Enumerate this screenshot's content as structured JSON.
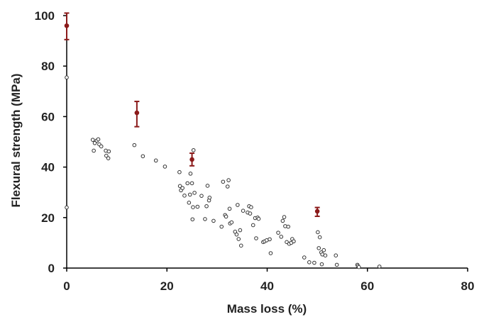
{
  "chart_data": {
    "type": "scatter",
    "title": "",
    "xlabel": "Mass loss (%)",
    "ylabel": "Flexural strength (MPa)",
    "xlim": [
      0,
      80
    ],
    "ylim": [
      0,
      100
    ],
    "x_ticks": [
      0,
      20,
      40,
      60,
      80
    ],
    "y_ticks": [
      0,
      20,
      40,
      60,
      80,
      100
    ],
    "grid": false,
    "legend": "none",
    "colors": {
      "points": "#333333",
      "error_bars": "#8b1a1a",
      "axes": "#000000"
    },
    "series": [
      {
        "marker": "open-circle",
        "points": [
          [
            0,
            75.5
          ],
          [
            0,
            24
          ],
          [
            5.2,
            50.8
          ],
          [
            5.4,
            46.5
          ],
          [
            5.6,
            49.5
          ],
          [
            6.0,
            50.5
          ],
          [
            6.3,
            51
          ],
          [
            6.5,
            49
          ],
          [
            6.9,
            48.2
          ],
          [
            7.8,
            46.5
          ],
          [
            7.9,
            44.5
          ],
          [
            8.3,
            43.5
          ],
          [
            8.4,
            46.2
          ],
          [
            13.5,
            48.7
          ],
          [
            15.2,
            44.3
          ],
          [
            17.8,
            42.6
          ],
          [
            19.6,
            40.2
          ],
          [
            22.5,
            38
          ],
          [
            22.6,
            32.5
          ],
          [
            22.8,
            30.8
          ],
          [
            23.1,
            31.7
          ],
          [
            23.5,
            28.7
          ],
          [
            24.1,
            33.6
          ],
          [
            24.4,
            25.9
          ],
          [
            24.6,
            29.1
          ],
          [
            24.7,
            37.4
          ],
          [
            25.0,
            33.6
          ],
          [
            25.1,
            19.3
          ],
          [
            25.2,
            24.1
          ],
          [
            25.3,
            46.7
          ],
          [
            25.5,
            29.8
          ],
          [
            26.1,
            24.3
          ],
          [
            26.9,
            28.6
          ],
          [
            27.6,
            19.4
          ],
          [
            27.9,
            24.5
          ],
          [
            28.1,
            32.6
          ],
          [
            28.4,
            26.8
          ],
          [
            28.5,
            27.9
          ],
          [
            29.3,
            18.7
          ],
          [
            30.9,
            16.4
          ],
          [
            31.2,
            34.2
          ],
          [
            31.6,
            21
          ],
          [
            31.8,
            20.4
          ],
          [
            32.1,
            32.3
          ],
          [
            32.3,
            34.8
          ],
          [
            32.5,
            23.5
          ],
          [
            32.6,
            17.7
          ],
          [
            32.9,
            18.1
          ],
          [
            33.6,
            14.4
          ],
          [
            33.9,
            13.3
          ],
          [
            34.1,
            25
          ],
          [
            34.3,
            11.5
          ],
          [
            34.6,
            15
          ],
          [
            34.8,
            8.9
          ],
          [
            35.2,
            22.7
          ],
          [
            36.1,
            22
          ],
          [
            36.4,
            24.5
          ],
          [
            36.6,
            21.6
          ],
          [
            36.8,
            24.1
          ],
          [
            37.2,
            17
          ],
          [
            37.6,
            19.8
          ],
          [
            37.8,
            11.8
          ],
          [
            38.1,
            20
          ],
          [
            38.3,
            19.5
          ],
          [
            39.2,
            10.3
          ],
          [
            39.5,
            10.6
          ],
          [
            39.9,
            11
          ],
          [
            40.5,
            11.4
          ],
          [
            40.7,
            5.9
          ],
          [
            42.2,
            14
          ],
          [
            42.8,
            12.4
          ],
          [
            43.1,
            18.7
          ],
          [
            43.4,
            20.2
          ],
          [
            43.6,
            16.6
          ],
          [
            43.9,
            10.3
          ],
          [
            44.2,
            16.4
          ],
          [
            44.4,
            9.6
          ],
          [
            44.8,
            10
          ],
          [
            45.0,
            11.5
          ],
          [
            45.3,
            10.6
          ],
          [
            47.4,
            4.2
          ],
          [
            48.4,
            2.3
          ],
          [
            49.4,
            2.1
          ],
          [
            50.1,
            14.2
          ],
          [
            50.3,
            7.9
          ],
          [
            50.5,
            12.2
          ],
          [
            50.8,
            6.2
          ],
          [
            50.9,
            1.5
          ],
          [
            51.0,
            5.4
          ],
          [
            51.3,
            7.1
          ],
          [
            51.6,
            5
          ],
          [
            53.7,
            5
          ],
          [
            53.9,
            1.3
          ],
          [
            58.0,
            1.3
          ],
          [
            58.1,
            0.8
          ],
          [
            58.3,
            0.4
          ],
          [
            62.4,
            0.6
          ]
        ]
      },
      {
        "marker": "filled-circle-errorbar",
        "points": [
          {
            "x": 0,
            "y": 96,
            "low": 90.5,
            "high": 101
          },
          {
            "x": 14,
            "y": 61.5,
            "low": 56,
            "high": 66
          },
          {
            "x": 25,
            "y": 43,
            "low": 40.5,
            "high": 45.5
          },
          {
            "x": 50,
            "y": 22.5,
            "low": 20.5,
            "high": 24
          }
        ]
      }
    ]
  }
}
